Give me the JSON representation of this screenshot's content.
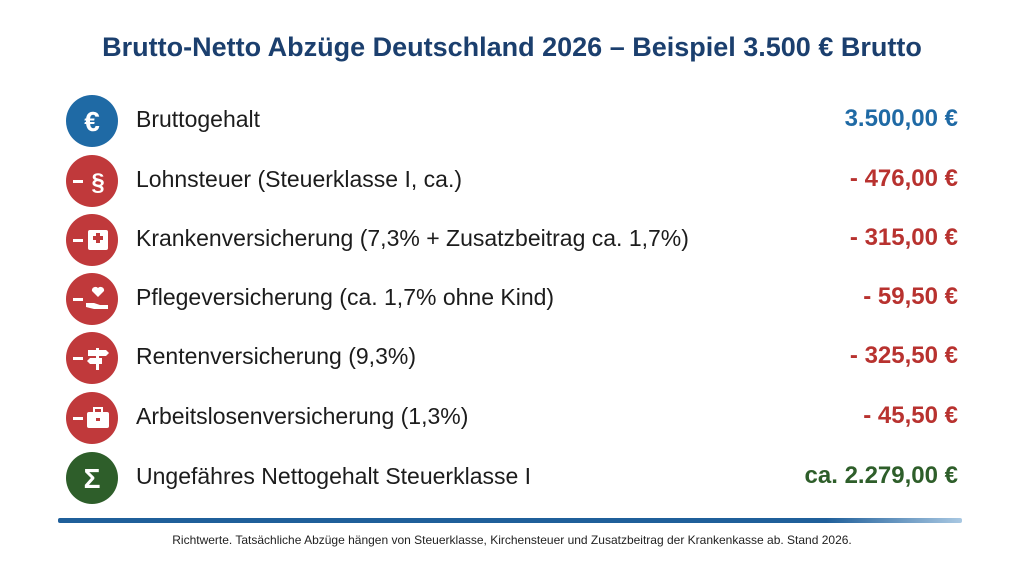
{
  "header": {
    "title": "Brutto-Netto Abzüge Deutschland 2026 – Beispiel 3.500 € Brutto"
  },
  "rows": [
    {
      "icon": "€",
      "label": "Bruttogehalt",
      "amount": "3.500,00 €"
    },
    {
      "icon": "§",
      "label": "Lohnsteuer (Steuerklasse I, ca.)",
      "amount": "- 476,00 €"
    },
    {
      "label": "Krankenversicherung (7,3% + Zusatzbeitrag ca. 1,7%)",
      "amount": "- 315,00 €"
    },
    {
      "label": "Pflegeversicherung (ca. 1,7% ohne Kind)",
      "amount": "- 59,50 €"
    },
    {
      "label": "Rentenversicherung (9,3%)",
      "amount": "- 325,50 €"
    },
    {
      "label": "Arbeitslosenversicherung (1,3%)",
      "amount": "- 45,50 €"
    },
    {
      "icon": "Σ",
      "label": "Ungefähres Nettogehalt Steuerklasse I",
      "amount": "ca. 2.279,00 €"
    }
  ],
  "footnote": "Richtwerte. Tatsächliche Abzüge hängen von Steuerklasse, Kirchensteuer und Zusatzbeitrag der Krankenkasse ab. Stand 2026."
}
